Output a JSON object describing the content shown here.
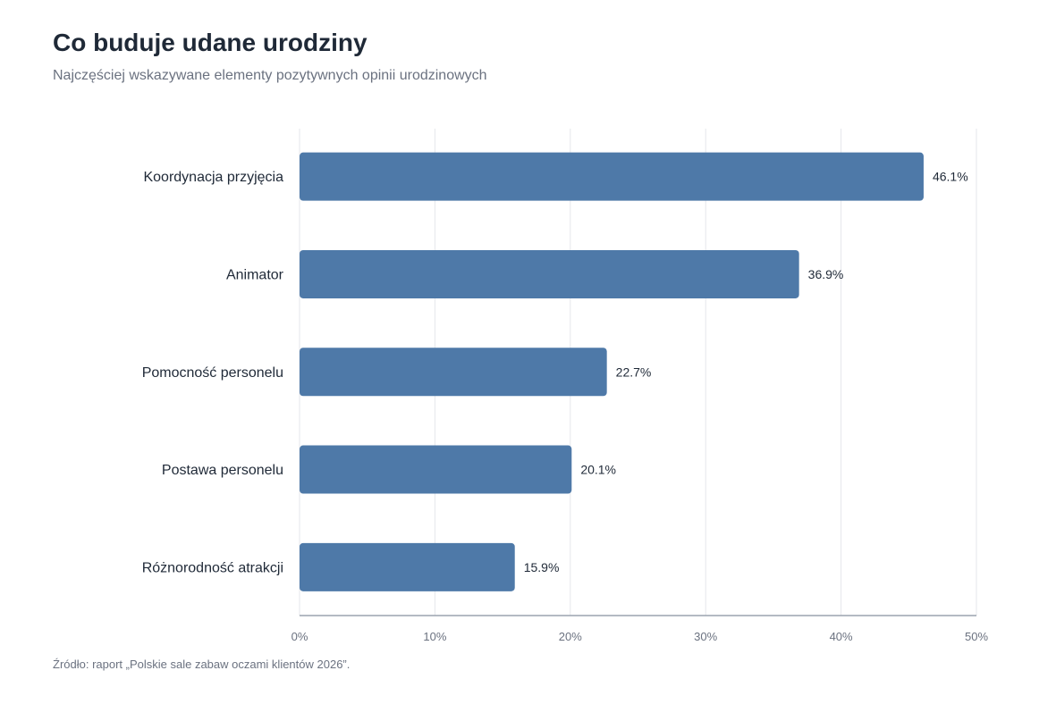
{
  "header": {
    "title": "Co buduje udane urodziny",
    "subtitle": "Najczęściej wskazywane elementy pozytywnych opinii urodzinowych"
  },
  "footer": {
    "source": "Źródło: raport „Polskie sale zabaw oczami klientów 2026”."
  },
  "chart_data": {
    "type": "bar",
    "orientation": "horizontal",
    "categories": [
      "Koordynacja przyjęcia",
      "Animator",
      "Pomocność personelu",
      "Postawa personelu",
      "Różnorodność atrakcji"
    ],
    "values": [
      46.1,
      36.9,
      22.7,
      20.1,
      15.9
    ],
    "value_labels": [
      "46.1%",
      "36.9%",
      "22.7%",
      "20.1%",
      "15.9%"
    ],
    "xlim": [
      0,
      50
    ],
    "x_ticks": [
      0,
      10,
      20,
      30,
      40,
      50
    ],
    "x_tick_labels": [
      "0%",
      "10%",
      "20%",
      "30%",
      "40%",
      "50%"
    ],
    "grid": "vertical",
    "legend": "none",
    "colors": {
      "bar": "#4e79a8",
      "grid": "#e5e7eb",
      "axis": "#9ca3af",
      "category_label": "#1f2937",
      "value_label": "#1f2937",
      "tick_label": "#6b7280"
    }
  }
}
